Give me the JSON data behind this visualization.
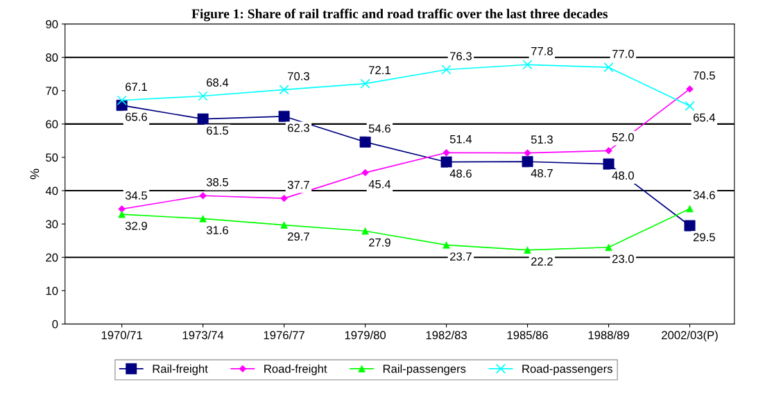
{
  "chart_data": {
    "type": "line",
    "title": "Figure 1: Share of rail traffic and road traffic over the last three decades",
    "ylabel": "%",
    "categories": [
      "1970/71",
      "1973/74",
      "1976/77",
      "1979/80",
      "1982/83",
      "1985/86",
      "1988/89",
      "2002/03(P)"
    ],
    "series": [
      {
        "name": "Rail-freight",
        "color": "#000080",
        "marker": "square",
        "values": [
          65.6,
          61.5,
          62.3,
          54.6,
          48.6,
          48.7,
          48.0,
          29.5
        ],
        "value_labels": [
          "65.6",
          "61.5",
          "62.3",
          "54.6",
          "48.6",
          "48.7",
          "48.0",
          "29.5"
        ]
      },
      {
        "name": "Road-freight",
        "color": "#ff00ff",
        "marker": "diamond",
        "values": [
          34.5,
          38.5,
          37.7,
          45.4,
          51.4,
          51.3,
          52.0,
          70.5
        ],
        "value_labels": [
          "34.5",
          "38.5",
          "37.7",
          "45.4",
          "51.4",
          "51.3",
          "52.0",
          "70.5"
        ]
      },
      {
        "name": "Rail-passengers",
        "color": "#00ff00",
        "marker": "triangle",
        "values": [
          32.9,
          31.6,
          29.7,
          27.9,
          23.7,
          22.2,
          23.0,
          34.6
        ],
        "value_labels": [
          "32.9",
          "31.6",
          "29.7",
          "27.9",
          "23.7",
          "22.2",
          "23.0",
          "34.6"
        ]
      },
      {
        "name": "Road-passengers",
        "color": "#00ffff",
        "marker": "cross",
        "values": [
          67.1,
          68.4,
          70.3,
          72.1,
          76.3,
          77.8,
          77.0,
          65.4
        ],
        "value_labels": [
          "67.1",
          "68.4",
          "70.3",
          "72.1",
          "76.3",
          "77.8",
          "77.0",
          "65.4"
        ]
      }
    ],
    "ylim": [
      0,
      90
    ],
    "yticks": [
      0,
      10,
      20,
      30,
      40,
      50,
      60,
      70,
      80,
      90
    ],
    "ref_lines": [
      {
        "axis": "y",
        "value": 20,
        "color": "#000000"
      },
      {
        "axis": "y",
        "value": 40,
        "color": "#000000"
      },
      {
        "axis": "y",
        "value": 60,
        "color": "#000000"
      },
      {
        "axis": "y",
        "value": 80,
        "color": "#000000"
      }
    ],
    "legend": "bottom",
    "line_style": "solid"
  }
}
